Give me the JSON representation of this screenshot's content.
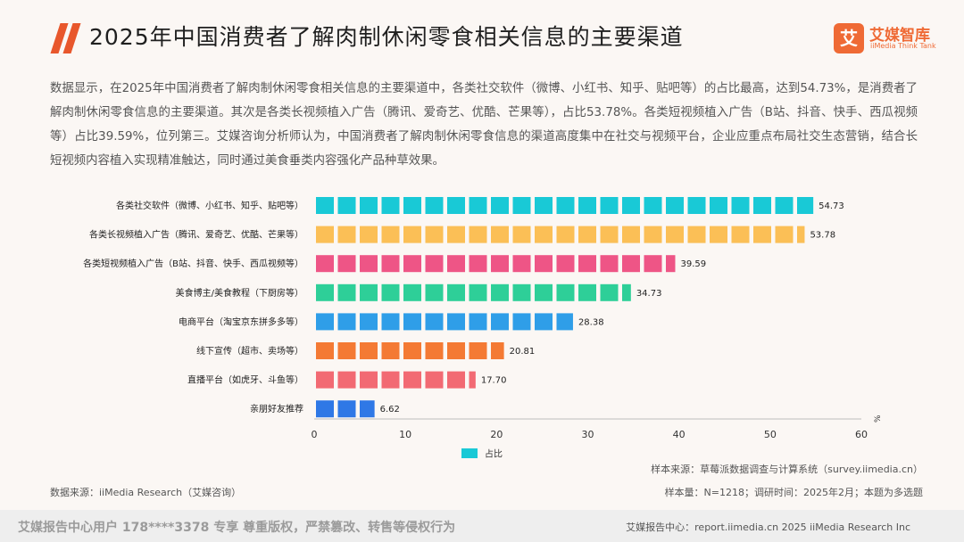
{
  "header": {
    "title": "2025年中国消费者了解肉制休闲零食相关信息的主要渠道",
    "logo_cn": "艾媒智库",
    "logo_en": "iiMedia Think Tank",
    "logo_mark": "艾"
  },
  "summary": "数据显示，在2025年中国消费者了解肉制休闲零食相关信息的主要渠道中，各类社交软件（微博、小红书、知乎、贴吧等）的占比最高，达到54.73%，是消费者了解肉制休闲零食信息的主要渠道。其次是各类长视频植入广告（腾讯、爱奇艺、优酷、芒果等），占比53.78%。各类短视频植入广告（B站、抖音、快手、西瓜视频等）占比39.59%，位列第三。艾媒咨询分析师认为，中国消费者了解肉制休闲零食信息的渠道高度集中在社交与视频平台，企业应重点布局社交生态营销，结合长短视频内容植入实现精准触达，同时通过美食垂类内容强化产品种草效果。",
  "chart_data": {
    "type": "bar",
    "orientation": "horizontal",
    "categories": [
      "各类社交软件（微博、小红书、知乎、贴吧等）",
      "各类长视频植入广告（腾讯、爱奇艺、优酷、芒果等）",
      "各类短视频植入广告（B站、抖音、快手、西瓜视频等）",
      "美食博主/美食教程（下厨房等）",
      "电商平台（淘宝京东拼多多等）",
      "线下宣传（超市、卖场等）",
      "直播平台（如虎牙、斗鱼等）",
      "亲朋好友推荐"
    ],
    "series": [
      {
        "name": "占比",
        "values": [
          54.73,
          53.78,
          39.59,
          34.73,
          28.38,
          20.81,
          17.7,
          6.62
        ],
        "value_labels": [
          "54.73",
          "53.78",
          "39.59",
          "34.73",
          "28.38",
          "20.81",
          "17.70",
          "6.62"
        ]
      }
    ],
    "bar_colors": [
      "#19c9d6",
      "#fbbf56",
      "#ee5586",
      "#2ecf98",
      "#2f9ee8",
      "#f47a34",
      "#f26a73",
      "#2f78e6"
    ],
    "legend_color": "#19c9d6",
    "xlim": [
      0,
      60
    ],
    "xticks": [
      "0",
      "10",
      "20",
      "30",
      "40",
      "50",
      "60"
    ],
    "unit": "%",
    "legend_position": "bottom-center",
    "grid": false,
    "xlabel": "",
    "ylabel": ""
  },
  "notes": {
    "data_source": "数据来源：iiMedia Research（艾媒咨询）",
    "sample_source": "样本来源：草莓派数据调查与计算系统（survey.iimedia.cn）",
    "sample_size": "样本量：N=1218；调研时间：2025年2月；本题为多选题"
  },
  "footer": {
    "left": "艾媒报告中心用户 178****3378 专享 尊重版权，严禁篡改、转售等侵权行为",
    "right": "艾媒报告中心：report.iimedia.cn  2025 iiMedia Research Inc"
  }
}
